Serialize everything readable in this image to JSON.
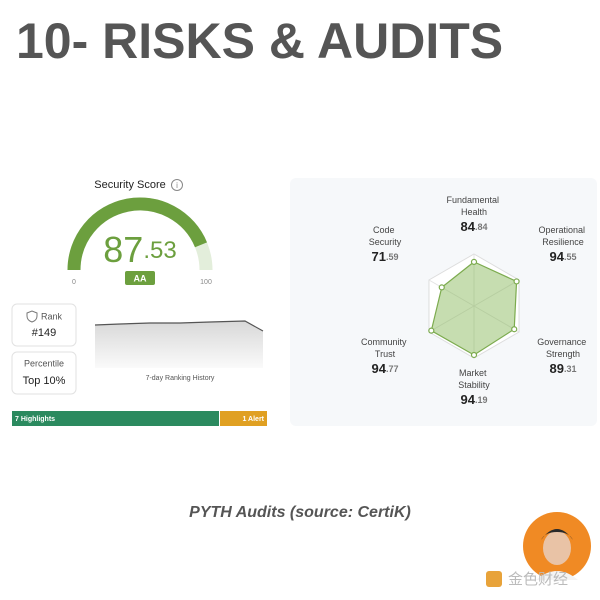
{
  "title": "10- RISKS & AUDITS",
  "security_score": {
    "label": "Security Score",
    "score": 87.53,
    "grade": "AA",
    "gauge_min": 0,
    "gauge_max": 100
  },
  "rank": {
    "label": "Rank",
    "value": "#149"
  },
  "percentile": {
    "label": "Percentile",
    "value": "Top 10%"
  },
  "ranking_history_label": "7-day Ranking History",
  "highlights": "7 Highlights",
  "alerts": "1 Alert",
  "radar": {
    "metrics": [
      {
        "label": "Fundamental Health",
        "value": 84.84
      },
      {
        "label": "Operational Resilience",
        "value": 94.55
      },
      {
        "label": "Governance Strength",
        "value": 89.31
      },
      {
        "label": "Market Stability",
        "value": 94.19
      },
      {
        "label": "Community Trust",
        "value": 94.77
      },
      {
        "label": "Code Security",
        "value": 71.59
      }
    ]
  },
  "caption": "PYTH Audits (source: CertiK)",
  "watermark": "金色财经"
}
